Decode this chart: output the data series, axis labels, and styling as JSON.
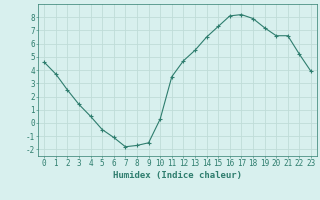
{
  "x": [
    0,
    1,
    2,
    3,
    4,
    5,
    6,
    7,
    8,
    9,
    10,
    11,
    12,
    13,
    14,
    15,
    16,
    17,
    18,
    19,
    20,
    21,
    22,
    23
  ],
  "y": [
    4.6,
    3.7,
    2.5,
    1.4,
    0.5,
    -0.5,
    -1.1,
    -1.8,
    -1.7,
    -1.5,
    0.3,
    3.5,
    4.7,
    5.5,
    6.5,
    7.3,
    8.1,
    8.2,
    7.9,
    7.2,
    6.6,
    6.6,
    5.2,
    3.9
  ],
  "line_color": "#2e7d6e",
  "marker": "+",
  "marker_size": 3,
  "bg_color": "#d8f0ee",
  "grid_color": "#c0dcd8",
  "xlabel": "Humidex (Indice chaleur)",
  "xlabel_fontsize": 6.5,
  "tick_fontsize": 5.5,
  "xlim": [
    -0.5,
    23.5
  ],
  "ylim": [
    -2.5,
    9.0
  ],
  "yticks": [
    -2,
    -1,
    0,
    1,
    2,
    3,
    4,
    5,
    6,
    7,
    8
  ],
  "xticks": [
    0,
    1,
    2,
    3,
    4,
    5,
    6,
    7,
    8,
    9,
    10,
    11,
    12,
    13,
    14,
    15,
    16,
    17,
    18,
    19,
    20,
    21,
    22,
    23
  ]
}
